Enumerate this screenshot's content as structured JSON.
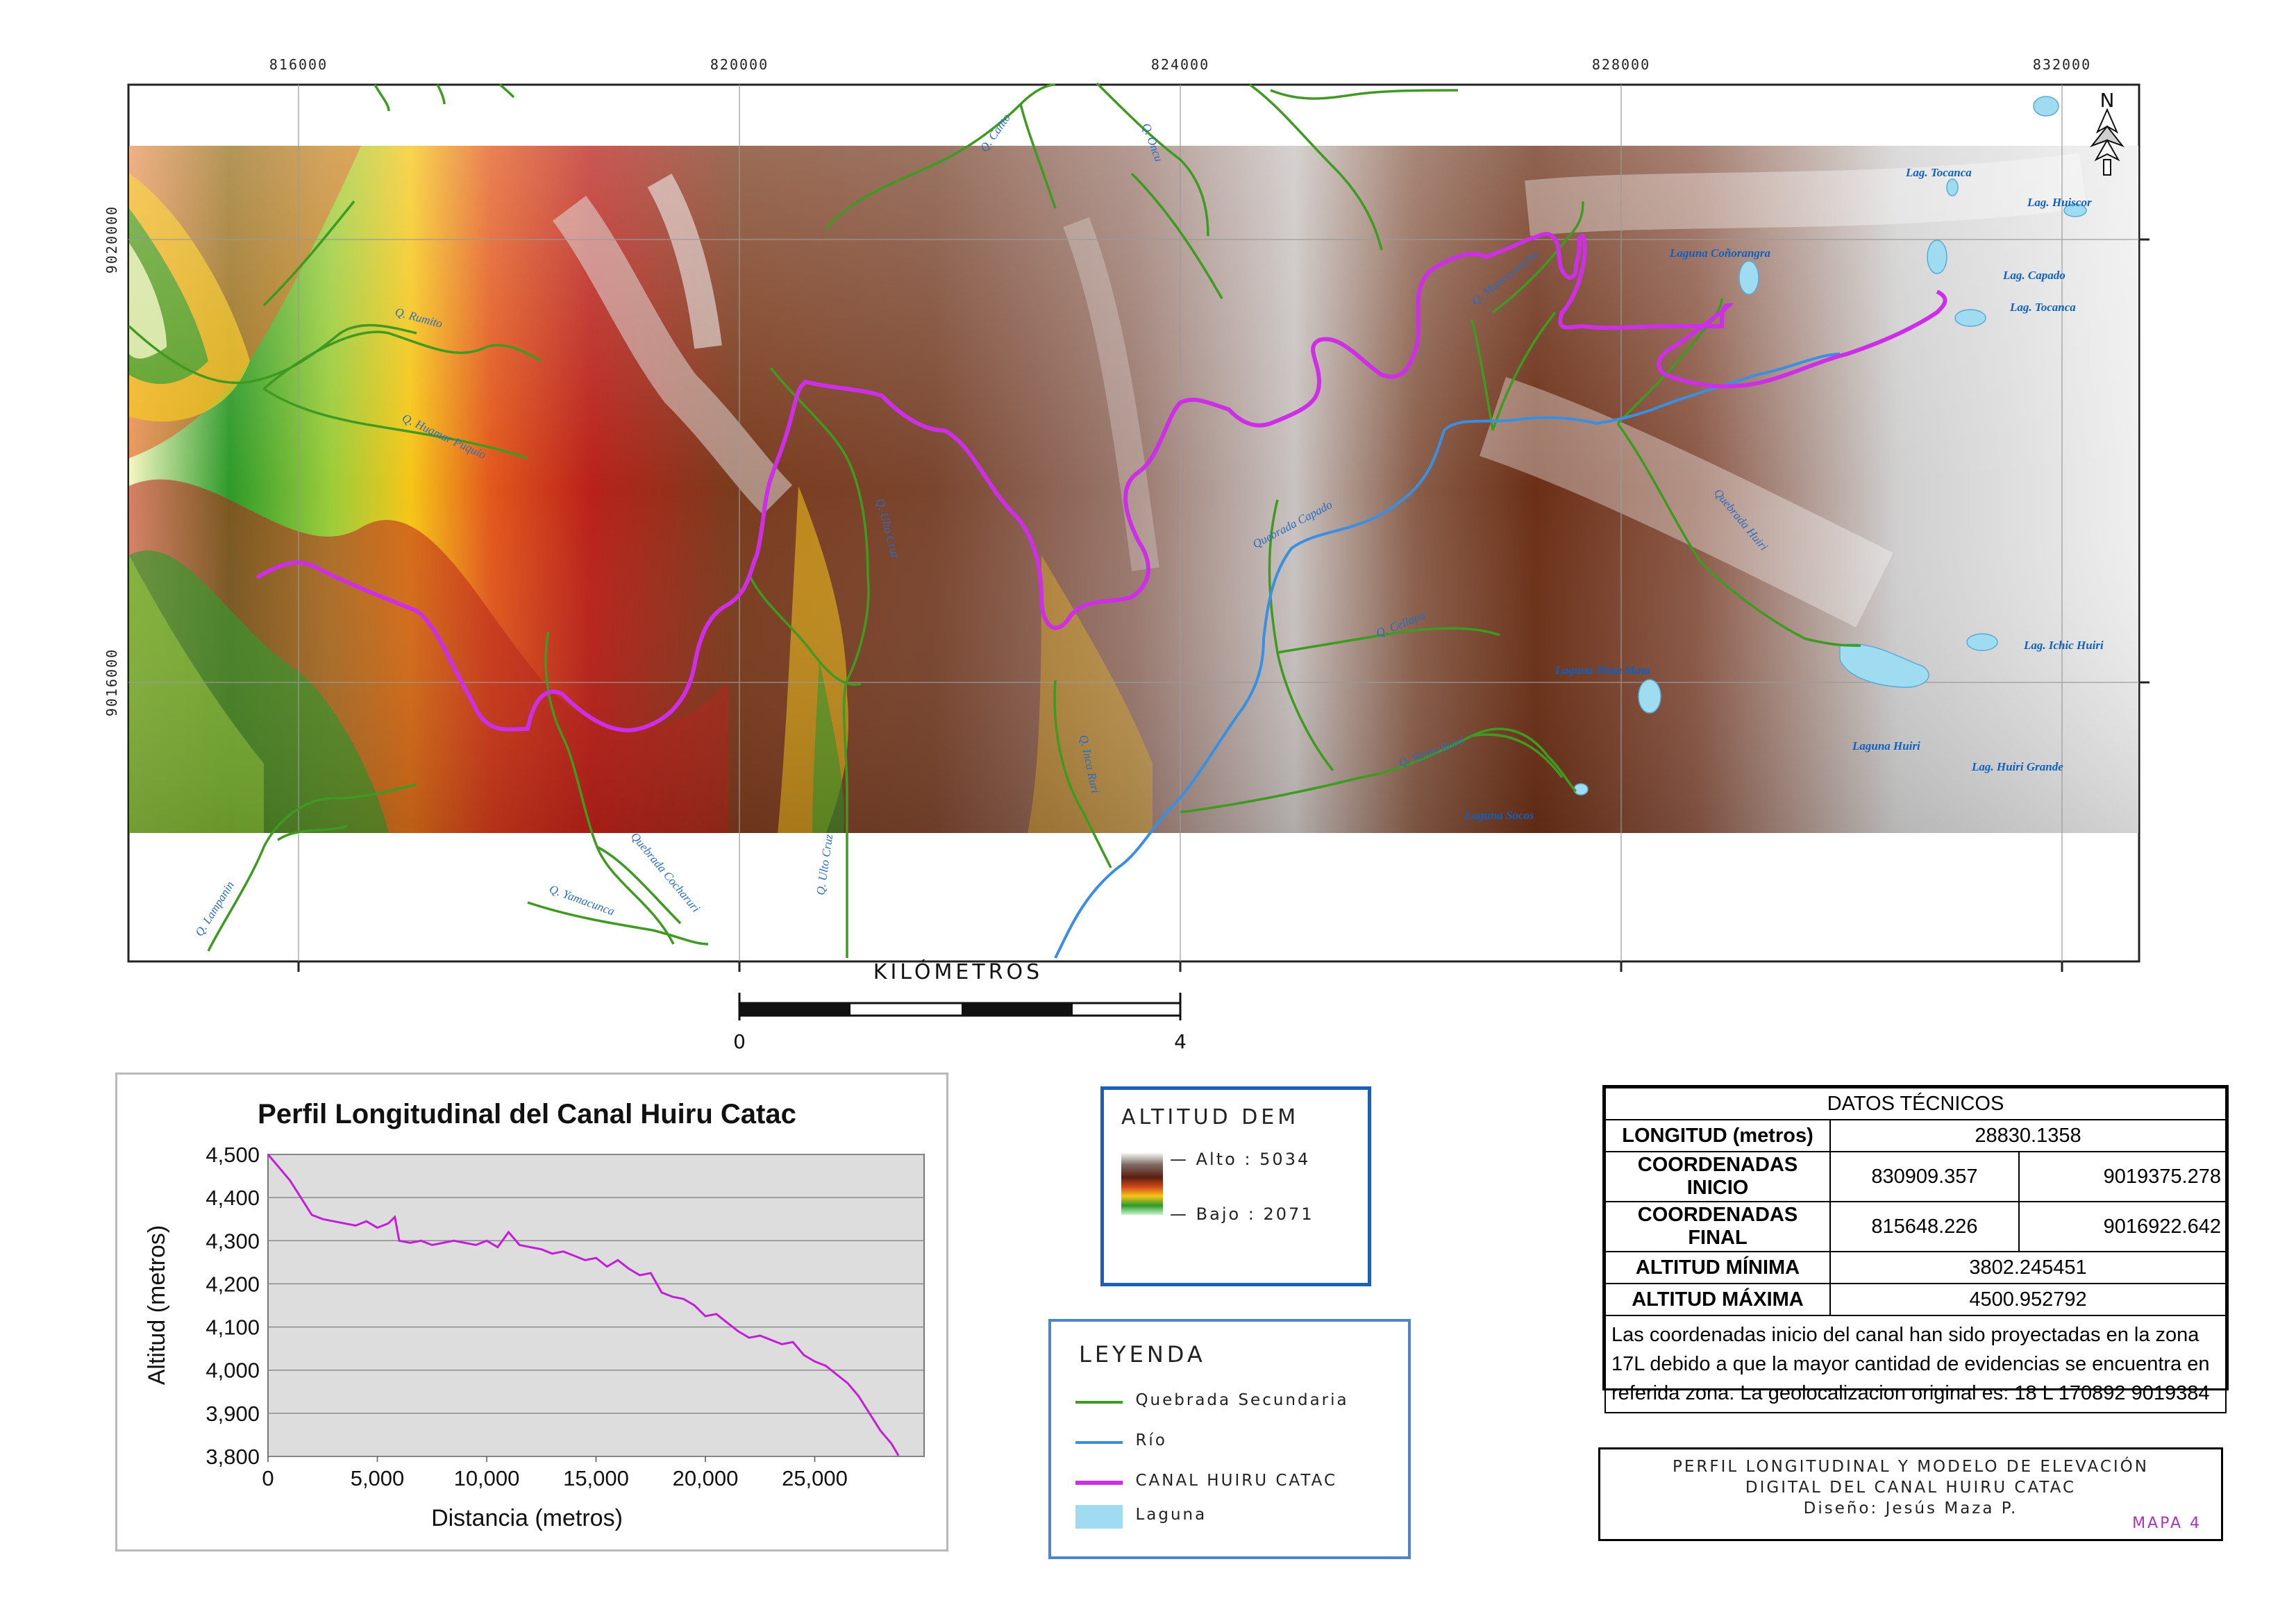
{
  "map": {
    "easting_ticks": [
      "816000",
      "820000",
      "824000",
      "828000",
      "832000"
    ],
    "northing_ticks": [
      "9020000",
      "9016000"
    ],
    "north_symbol": "N",
    "scale_title": "Kilómetros",
    "scale_start": "0",
    "scale_end": "4",
    "colors": {
      "canal": "#cc2fe6",
      "river": "#3a8fe0",
      "stream": "#3f9a22",
      "lake": "#9fdcf1"
    },
    "stream_labels": [
      "Q. Canto",
      "Q. Oncu",
      "Q. Rumito",
      "Q. Huamar Puquio",
      "Q. Ulto Cruz",
      "Quebrada Capado",
      "Q. Cellapa",
      "Quebrada Huiri",
      "Q. Santo Rumi",
      "Q. Lampanin",
      "Q. Yamacunca",
      "Quebrada Cocharuri",
      "Q. Ulto Cruz",
      "Q. Inca Ruri",
      "Q. Mancucancha"
    ],
    "lake_labels": [
      "Lag. Tocanca",
      "Lag. Huiscor",
      "Laguna Coñorangra",
      "Lag. Capado",
      "Lag. Tocanca",
      "Laguna Mata Mata",
      "Lag. Ichic Huiri",
      "Laguna Huiri",
      "Lag. Huiri Grande",
      "Laguna Socos"
    ]
  },
  "profile": {
    "title": "Perfil Longitudinal del Canal Huiru Catac",
    "xlabel": "Distancia (metros)",
    "ylabel": "Altitud (metros)"
  },
  "chart_data": {
    "type": "line",
    "title": "Perfil Longitudinal del Canal Huiru Catac",
    "xlabel": "Distancia (metros)",
    "ylabel": "Altitud (metros)",
    "xlim": [
      0,
      30000
    ],
    "ylim": [
      3800,
      4500
    ],
    "x_ticks": [
      0,
      5000,
      10000,
      15000,
      20000,
      25000
    ],
    "x_tick_labels": [
      "0",
      "5,000",
      "10,000",
      "15,000",
      "20,000",
      "25,000"
    ],
    "y_ticks": [
      3800,
      3900,
      4000,
      4100,
      4200,
      4300,
      4400,
      4500
    ],
    "y_tick_labels": [
      "3,800",
      "3,900",
      "4,000",
      "4,100",
      "4,200",
      "4,300",
      "4,400",
      "4,500"
    ],
    "series": [
      {
        "color": "#c41fd8",
        "x": [
          0,
          500,
          1000,
          1500,
          2000,
          2500,
          3000,
          3500,
          4000,
          4500,
          5000,
          5500,
          5800,
          6000,
          6500,
          7000,
          7500,
          8000,
          8500,
          9000,
          9500,
          10000,
          10500,
          11000,
          11500,
          12000,
          12500,
          13000,
          13500,
          14000,
          14500,
          15000,
          15500,
          16000,
          16500,
          17000,
          17500,
          18000,
          18500,
          19000,
          19500,
          20000,
          20500,
          21000,
          21500,
          22000,
          22500,
          23000,
          23500,
          24000,
          24500,
          25000,
          25500,
          26000,
          26500,
          27000,
          27500,
          28000,
          28500,
          28830
        ],
        "y": [
          4500,
          4470,
          4440,
          4400,
          4360,
          4350,
          4345,
          4340,
          4335,
          4345,
          4330,
          4340,
          4355,
          4300,
          4295,
          4300,
          4290,
          4295,
          4300,
          4295,
          4290,
          4300,
          4285,
          4320,
          4290,
          4285,
          4280,
          4270,
          4275,
          4265,
          4255,
          4260,
          4240,
          4255,
          4235,
          4220,
          4225,
          4180,
          4170,
          4165,
          4150,
          4125,
          4130,
          4110,
          4090,
          4075,
          4080,
          4070,
          4060,
          4065,
          4035,
          4020,
          4010,
          3990,
          3970,
          3940,
          3900,
          3860,
          3830,
          3802
        ]
      }
    ]
  },
  "dem_legend": {
    "title": "ALTITUD DEM",
    "high_label": "Alto : 5034",
    "low_label": "Bajo : 2071"
  },
  "legend": {
    "title": "LEYENDA",
    "items": [
      {
        "label": "Quebrada Secundaria",
        "color": "#3f9a22"
      },
      {
        "label": "Río",
        "color": "#3a8fe0"
      },
      {
        "label": "CANAL HUIRU CATAC",
        "color": "#cc2fe6"
      },
      {
        "label": "Laguna",
        "color": "#9fdcf1"
      }
    ]
  },
  "datos": {
    "header": "DATOS TÉCNICOS",
    "rows": [
      {
        "label": "LONGITUD (metros)",
        "v1": "28830.1358"
      },
      {
        "label": "COORDENADAS INICIO",
        "v1": "830909.357",
        "v2": "9019375.278"
      },
      {
        "label": "COORDENADAS FINAL",
        "v1": "815648.226",
        "v2": "9016922.642"
      },
      {
        "label": "ALTITUD MÍNIMA",
        "v1": "3802.245451"
      },
      {
        "label": "ALTITUD MÁXIMA",
        "v1": "4500.952792"
      }
    ],
    "note": "Las coordenadas inicio del canal han sido proyectadas en la zona 17L debido a que la mayor cantidad de evidencias se encuentra en referida zona. La geolocalizacion original es: 18 L 170892 9019384"
  },
  "title_block": {
    "line1": "Perfil longitudinal y modelo de elevación",
    "line2": "digital del canal Huiru Catac",
    "line3": "Diseño: Jesús Maza P.",
    "map_no": "MAPA 4"
  }
}
